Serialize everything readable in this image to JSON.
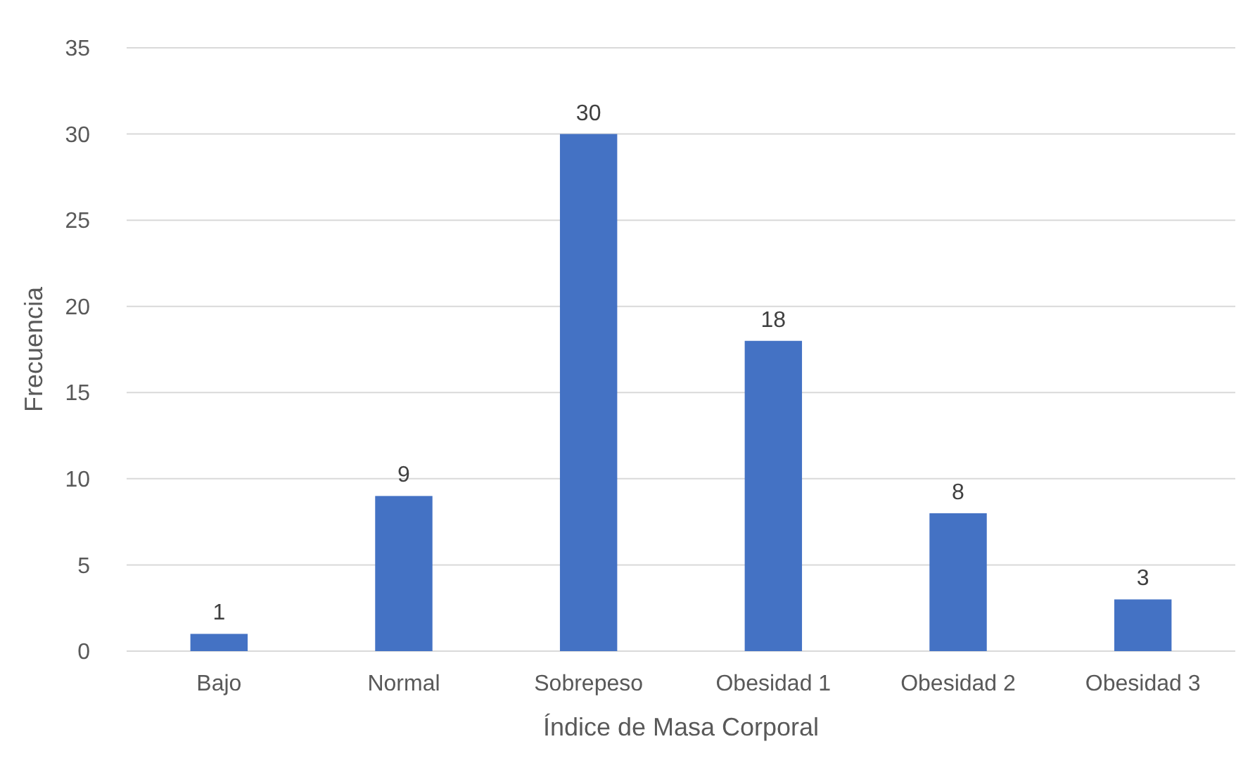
{
  "chart_data": {
    "type": "bar",
    "xlabel": "Índice de Masa Corporal",
    "ylabel": "Frecuencia",
    "categories": [
      "Bajo",
      "Normal",
      "Sobrepeso",
      "Obesidad 1",
      "Obesidad 2",
      "Obesidad 3"
    ],
    "values": [
      1,
      9,
      30,
      18,
      8,
      3
    ],
    "color": "#4472c4",
    "ylim": [
      0,
      35
    ],
    "yticks": [
      0,
      5,
      10,
      15,
      20,
      25,
      30,
      35
    ],
    "grid": "y",
    "data_labels": true
  }
}
